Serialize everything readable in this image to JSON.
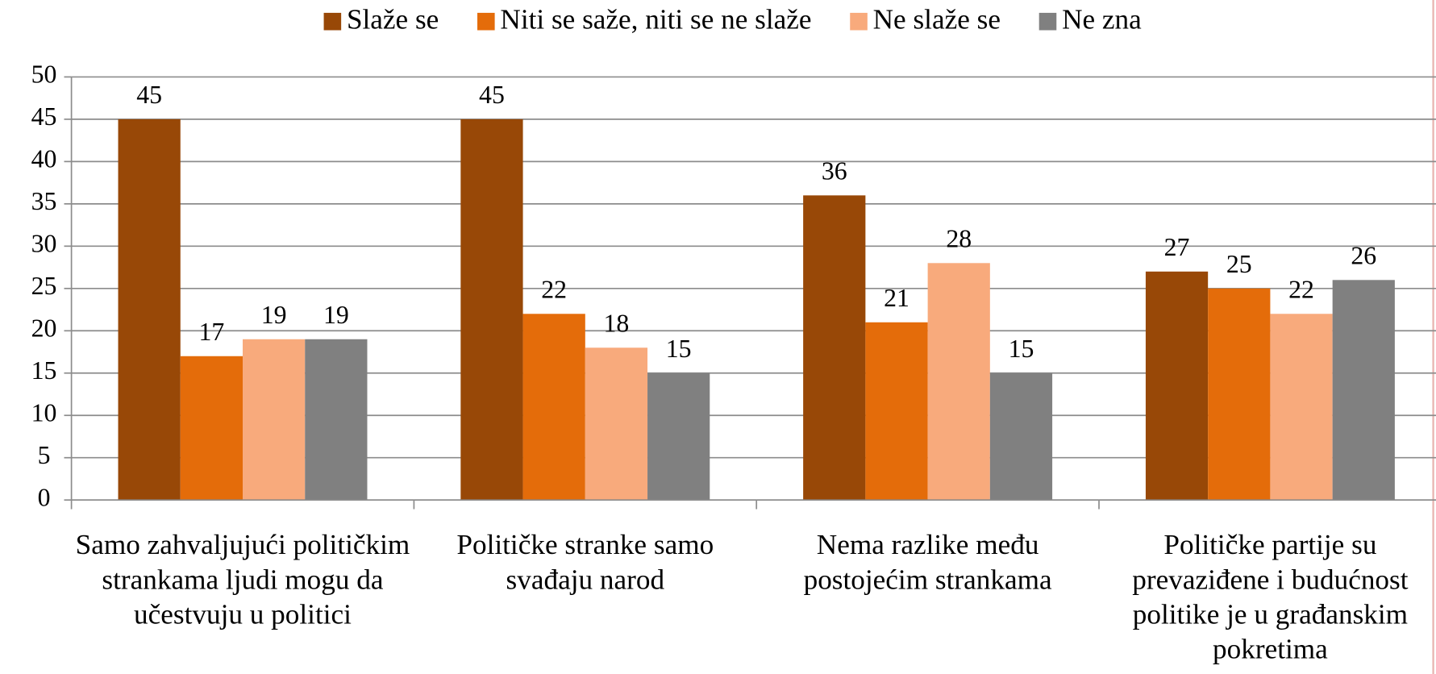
{
  "chart_data": {
    "type": "bar",
    "categories": [
      "Samo zahvaljujući političkim strankama ljudi mogu da učestvuju u politici",
      "Političke stranke samo svađaju narod",
      "Nema razlike među postojećim strankama",
      "Političke partije su prevaziđene i budućnost politike je u građanskim pokretima"
    ],
    "series": [
      {
        "name": "Slaže se",
        "color": "#984807",
        "values": [
          45,
          45,
          36,
          27
        ]
      },
      {
        "name": "Niti se saže, niti se ne slaže",
        "color": "#e46c0a",
        "values": [
          17,
          22,
          21,
          25
        ]
      },
      {
        "name": "Ne slaže se",
        "color": "#f8aa7c",
        "values": [
          19,
          18,
          28,
          22
        ]
      },
      {
        "name": "Ne zna",
        "color": "#808080",
        "values": [
          19,
          15,
          15,
          26
        ]
      }
    ],
    "ylim": [
      0,
      50
    ],
    "yticks": [
      0,
      5,
      10,
      15,
      20,
      25,
      30,
      35,
      40,
      45,
      50
    ],
    "grid": true,
    "legend": "top"
  }
}
